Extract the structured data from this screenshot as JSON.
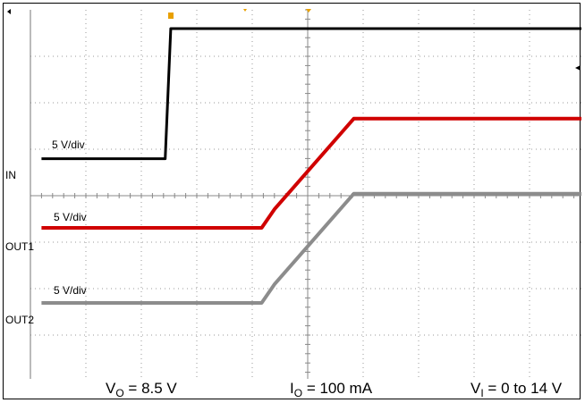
{
  "chart_data": {
    "type": "line",
    "title": "",
    "xlabel": "",
    "ylabel": "",
    "grid": true,
    "grid_divisions": {
      "x": 10,
      "y": 8
    },
    "channels": [
      {
        "name": "IN",
        "scale_label": "5 V/div",
        "color": "#000000"
      },
      {
        "name": "OUT1",
        "scale_label": "5 V/div",
        "color": "#d00000"
      },
      {
        "name": "OUT2",
        "scale_label": "5 V/div",
        "color": "#8c8c8c"
      }
    ],
    "series": [
      {
        "name": "IN",
        "x": [
          0.2,
          2.43,
          2.53,
          10.0
        ],
        "y": [
          -0.05,
          -0.05,
          2.75,
          2.75
        ]
      },
      {
        "name": "OUT1",
        "x": [
          0.2,
          4.17,
          4.4,
          5.83,
          10.0
        ],
        "y": [
          0.0,
          0.0,
          0.4,
          2.35,
          2.35
        ]
      },
      {
        "name": "OUT2",
        "x": [
          0.2,
          4.17,
          4.4,
          5.83,
          10.0
        ],
        "y": [
          0.0,
          0.0,
          0.4,
          2.35,
          2.35
        ]
      }
    ],
    "conditions": {
      "vo_label": "V",
      "vo_sub": "O",
      "vo_value": "= 8.5 V",
      "io_label": "I",
      "io_sub": "O",
      "io_value": "= 100 mA",
      "vi_label": "V",
      "vi_sub": "I",
      "vi_value": "= 0 to 14 V"
    }
  }
}
